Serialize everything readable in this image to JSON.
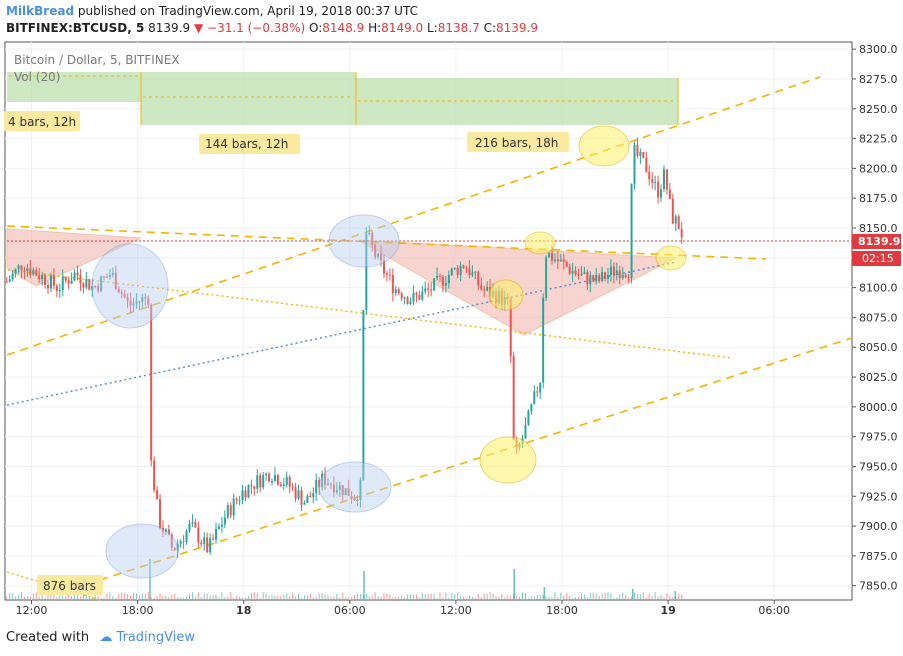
{
  "header": {
    "user": "MilkBread",
    "published": "published on TradingView.com, April 19, 2018 00:37 UTC",
    "symbol": "BITFINEX:BTCUSD, 5",
    "last": "8139.9",
    "change": "▼ −31.1 (−0.38%)",
    "o_label": "O:",
    "o_val": "8148.9",
    "h_label": "H:",
    "h_val": "8149.0",
    "l_label": "L:",
    "l_val": "8138.7",
    "c_label": "C:",
    "c_val": "8139.9"
  },
  "legend": {
    "title": "Bitcoin / Dollar, 5, BITFINEX",
    "vol": "Vol (20)"
  },
  "labels": {
    "bars_a": "4 bars, 12h",
    "bars_b": "144 bars, 12h",
    "bars_c": "216 bars, 18h",
    "bars_d": "876 bars",
    "price_tag": "8139.9",
    "time_tag": "02:15"
  },
  "footer": {
    "created": "Created with",
    "brand": "TradingView"
  },
  "colors": {
    "up": "#26a69a",
    "down": "#ef5350",
    "level": "#f4b400",
    "ellipse": "#b9cff0",
    "triangle": "#f3b9b0",
    "range": "#bfe0b0"
  },
  "chart_data": {
    "type": "candlestick",
    "symbol": "BTCUSD",
    "exchange": "BITFINEX",
    "interval": "5",
    "y_ticks": [
      8300,
      8275,
      8250,
      8225,
      8200,
      8175,
      8150,
      8125,
      8100,
      8075,
      8050,
      8025,
      8000,
      7975,
      7950,
      7925,
      7900,
      7875,
      7850
    ],
    "ylim": [
      7838,
      8306
    ],
    "x_ticks": [
      "12:00",
      "18:00",
      "18",
      "06:00",
      "12:00",
      "18:00",
      "19",
      "06:00"
    ],
    "x_tick_hours": [
      12,
      18,
      24,
      30,
      36,
      42,
      48,
      54
    ],
    "xlim_hours": [
      10.5,
      58.4
    ],
    "price_path": [
      [
        10.6,
        8105
      ],
      [
        11.5,
        8120
      ],
      [
        12.5,
        8110
      ],
      [
        13.5,
        8100
      ],
      [
        14.5,
        8112
      ],
      [
        15.5,
        8100
      ],
      [
        16.5,
        8112
      ],
      [
        17.5,
        8085
      ],
      [
        18.6,
        8092
      ],
      [
        18.7,
        7960
      ],
      [
        19.2,
        7905
      ],
      [
        20.0,
        7880
      ],
      [
        21.0,
        7900
      ],
      [
        22.0,
        7880
      ],
      [
        23.0,
        7910
      ],
      [
        24.0,
        7930
      ],
      [
        25.5,
        7945
      ],
      [
        26.5,
        7935
      ],
      [
        27.5,
        7920
      ],
      [
        28.5,
        7940
      ],
      [
        29.5,
        7932
      ],
      [
        30.3,
        7925
      ],
      [
        30.7,
        7935
      ],
      [
        30.8,
        8150
      ],
      [
        31.5,
        8125
      ],
      [
        32.5,
        8100
      ],
      [
        33.5,
        8090
      ],
      [
        34.5,
        8098
      ],
      [
        35.5,
        8110
      ],
      [
        36.5,
        8120
      ],
      [
        37.5,
        8098
      ],
      [
        38.5,
        8092
      ],
      [
        39.0,
        8085
      ],
      [
        39.3,
        7955
      ],
      [
        39.8,
        7975
      ],
      [
        40.3,
        8000
      ],
      [
        40.8,
        8025
      ],
      [
        41.0,
        8130
      ],
      [
        42.0,
        8120
      ],
      [
        43.0,
        8110
      ],
      [
        44.0,
        8105
      ],
      [
        45.0,
        8115
      ],
      [
        45.8,
        8115
      ],
      [
        46.0,
        8215
      ],
      [
        46.8,
        8200
      ],
      [
        47.4,
        8180
      ],
      [
        47.8,
        8195
      ],
      [
        48.2,
        8160
      ],
      [
        48.6,
        8152
      ],
      [
        48.9,
        8140
      ]
    ],
    "volume_spikes": [
      [
        18.7,
        40
      ],
      [
        30.8,
        28
      ],
      [
        39.3,
        30
      ],
      [
        41.0,
        12
      ],
      [
        46.0,
        10
      ],
      [
        48.4,
        8
      ]
    ]
  }
}
